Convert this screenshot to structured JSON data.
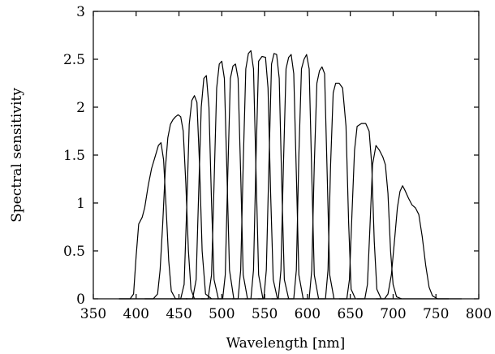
{
  "chart_data": {
    "type": "line",
    "xlabel": "Wavelength [nm]",
    "ylabel": "Spectral sensitivity",
    "xlim": [
      350,
      800
    ],
    "ylim": [
      0,
      3
    ],
    "xticks": [
      350,
      400,
      450,
      500,
      550,
      600,
      650,
      700,
      750,
      800
    ],
    "yticks": [
      0,
      0.5,
      1,
      1.5,
      2,
      2.5,
      3
    ],
    "ytick_labels": [
      "0",
      "0.5",
      "1",
      "1.5",
      "2",
      "2.5",
      "3"
    ],
    "grid": false,
    "legend": "none",
    "line_color": "#000000",
    "baseline": {
      "x": [
        380,
        780
      ],
      "y": [
        0,
        0
      ]
    },
    "series": [
      {
        "x": [
          380,
          393,
          397,
          400,
          403,
          407,
          410,
          414,
          418,
          422,
          426,
          429,
          432,
          435,
          438,
          441,
          446,
          460
        ],
        "y": [
          0,
          0,
          0.05,
          0.45,
          0.78,
          0.85,
          0.95,
          1.18,
          1.36,
          1.48,
          1.6,
          1.63,
          1.45,
          0.95,
          0.4,
          0.08,
          0,
          0
        ]
      },
      {
        "x": [
          410,
          420,
          425,
          428,
          431,
          434,
          437,
          440,
          443,
          446,
          449,
          452,
          455,
          458,
          461,
          464,
          468,
          480
        ],
        "y": [
          0,
          0,
          0.05,
          0.3,
          0.78,
          1.35,
          1.68,
          1.82,
          1.87,
          1.9,
          1.92,
          1.9,
          1.75,
          1.2,
          0.5,
          0.1,
          0,
          0
        ]
      },
      {
        "x": [
          440,
          452,
          456,
          459,
          462,
          465,
          468,
          471,
          474,
          477,
          481,
          488
        ],
        "y": [
          0,
          0,
          0.15,
          0.95,
          1.82,
          2.07,
          2.12,
          2.05,
          1.4,
          0.5,
          0.05,
          0
        ]
      },
      {
        "x": [
          458,
          466,
          470,
          473,
          476,
          479,
          482,
          485,
          488,
          491,
          496
        ],
        "y": [
          0,
          0,
          0.2,
          1.1,
          2.0,
          2.3,
          2.33,
          2.0,
          1.0,
          0.2,
          0
        ]
      },
      {
        "x": [
          476,
          484,
          488,
          491,
          494,
          497,
          500,
          503,
          506,
          509,
          514
        ],
        "y": [
          0,
          0,
          0.25,
          1.2,
          2.2,
          2.45,
          2.48,
          2.3,
          1.3,
          0.3,
          0
        ]
      },
      {
        "x": [
          494,
          501,
          504,
          507,
          510,
          513,
          516,
          519,
          522,
          525,
          530
        ],
        "y": [
          0,
          0,
          0.25,
          1.3,
          2.3,
          2.43,
          2.45,
          2.3,
          1.3,
          0.25,
          0
        ]
      },
      {
        "x": [
          512,
          519,
          522,
          525,
          528,
          531,
          534,
          537,
          540,
          543,
          548
        ],
        "y": [
          0,
          0,
          0.3,
          1.4,
          2.4,
          2.56,
          2.59,
          2.4,
          1.3,
          0.25,
          0
        ]
      },
      {
        "x": [
          527,
          534,
          537,
          540,
          543,
          547,
          551,
          554,
          557,
          560,
          565
        ],
        "y": [
          0,
          0,
          0.3,
          1.5,
          2.48,
          2.53,
          2.52,
          2.2,
          1.1,
          0.2,
          0
        ]
      },
      {
        "x": [
          542,
          549,
          552,
          555,
          558,
          561,
          564,
          567,
          570,
          573,
          578
        ],
        "y": [
          0,
          0,
          0.3,
          1.4,
          2.45,
          2.56,
          2.55,
          2.3,
          1.2,
          0.2,
          0
        ]
      },
      {
        "x": [
          558,
          566,
          569,
          572,
          575,
          578,
          581,
          584,
          587,
          590,
          595
        ],
        "y": [
          0,
          0,
          0.3,
          1.4,
          2.4,
          2.52,
          2.55,
          2.35,
          1.3,
          0.25,
          0
        ]
      },
      {
        "x": [
          576,
          584,
          587,
          590,
          593,
          596,
          599,
          602,
          605,
          608,
          613
        ],
        "y": [
          0,
          0,
          0.3,
          1.5,
          2.4,
          2.5,
          2.55,
          2.4,
          1.3,
          0.25,
          0
        ]
      },
      {
        "x": [
          594,
          602,
          605,
          608,
          611,
          614,
          617,
          620,
          623,
          626,
          631
        ],
        "y": [
          0,
          0,
          0.3,
          1.4,
          2.25,
          2.38,
          2.42,
          2.35,
          1.3,
          0.25,
          0
        ]
      },
      {
        "x": [
          612,
          621,
          624,
          627,
          630,
          633,
          637,
          641,
          645,
          648,
          651,
          656
        ],
        "y": [
          0,
          0,
          0.3,
          1.4,
          2.15,
          2.25,
          2.25,
          2.2,
          1.8,
          0.8,
          0.1,
          0
        ]
      },
      {
        "x": [
          637,
          646,
          649,
          652,
          655,
          658,
          663,
          668,
          672,
          675,
          678,
          681,
          686
        ],
        "y": [
          0,
          0,
          0.2,
          0.9,
          1.55,
          1.8,
          1.83,
          1.83,
          1.75,
          1.4,
          0.6,
          0.1,
          0
        ]
      },
      {
        "x": [
          658,
          667,
          670,
          673,
          676,
          680,
          684,
          688,
          691,
          694,
          697,
          700,
          704,
          710
        ],
        "y": [
          0,
          0,
          0.15,
          0.75,
          1.4,
          1.6,
          1.55,
          1.48,
          1.4,
          1.1,
          0.5,
          0.15,
          0.02,
          0
        ]
      },
      {
        "x": [
          680,
          690,
          694,
          698,
          702,
          705,
          708,
          711,
          714,
          718,
          722,
          726,
          730,
          734,
          738,
          742,
          746,
          752,
          765
        ],
        "y": [
          0,
          0,
          0.05,
          0.25,
          0.65,
          0.95,
          1.12,
          1.18,
          1.13,
          1.05,
          0.98,
          0.95,
          0.88,
          0.65,
          0.35,
          0.12,
          0.03,
          0,
          0
        ]
      }
    ]
  }
}
